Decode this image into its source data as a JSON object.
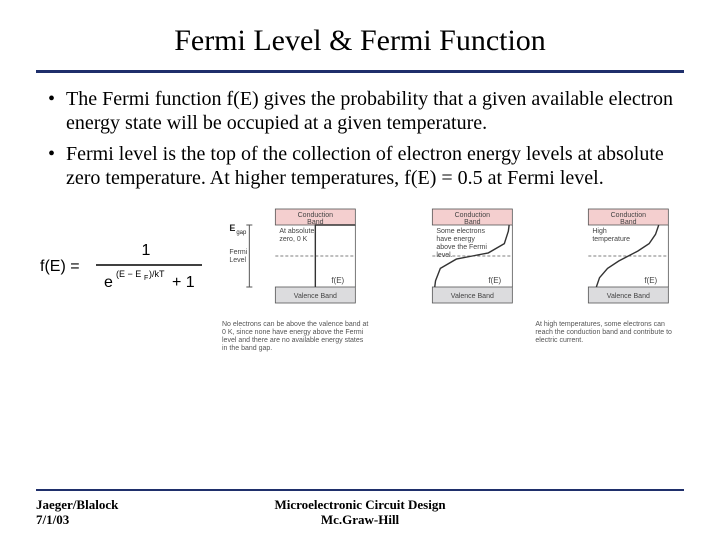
{
  "title": "Fermi Level & Fermi Function",
  "bullets": [
    "The Fermi function f(E) gives the probability that a given available electron energy state will be occupied at a given temperature.",
    "Fermi level is the top of the collection of electron energy levels at absolute zero temperature. At higher temperatures, f(E) = 0.5 at Fermi level."
  ],
  "formula": {
    "lhs": "f(E)",
    "numerator": "1",
    "denom_base": "e",
    "denom_exp": "(E − E_F)/kT",
    "denom_tail": " + 1"
  },
  "diagram": {
    "colors": {
      "conduction_fill": "#f4cfcf",
      "valence_fill": "#dcdcde",
      "line": "#555555",
      "text": "#444444",
      "curve": "#333333"
    },
    "labels": {
      "conduction": "Conduction Band",
      "valence": "Valence Band",
      "egap": "E_gap",
      "fermi": "Fermi Level",
      "fE": "f(E)"
    },
    "panels": [
      {
        "note": "At absolute zero, 0 K",
        "caption": "No electrons can be above the valence band at 0 K, since none have energy above the Fermi level and there are no available energy states in the band gap.",
        "curve": [
          [
            0,
            0
          ],
          [
            0,
            0.5
          ],
          [
            0.05,
            0.5
          ],
          [
            0.95,
            0.5
          ],
          [
            1.0,
            0.5
          ],
          [
            1.0,
            0.5
          ]
        ]
      },
      {
        "note": "Some electrons have energy above the Fermi level.",
        "caption": "",
        "curve": [
          [
            0,
            0.04
          ],
          [
            0.1,
            0.05
          ],
          [
            0.3,
            0.1
          ],
          [
            0.45,
            0.3
          ],
          [
            0.5,
            0.5
          ],
          [
            0.55,
            0.7
          ],
          [
            0.7,
            0.9
          ],
          [
            0.9,
            0.96
          ],
          [
            1.0,
            0.97
          ]
        ]
      },
      {
        "note": "High temperature",
        "caption": "At high temperatures, some electrons can reach the conduction band and contribute to electric current.",
        "curve": [
          [
            0,
            0.12
          ],
          [
            0.15,
            0.16
          ],
          [
            0.3,
            0.24
          ],
          [
            0.42,
            0.38
          ],
          [
            0.5,
            0.5
          ],
          [
            0.58,
            0.62
          ],
          [
            0.7,
            0.76
          ],
          [
            0.85,
            0.86
          ],
          [
            1.0,
            0.9
          ]
        ]
      }
    ]
  },
  "footer": {
    "left_line1": "Jaeger/Blalock",
    "left_line2": "7/1/03",
    "center_line1": "Microelectronic Circuit Design",
    "center_line2": "Mc.Graw-Hill"
  }
}
